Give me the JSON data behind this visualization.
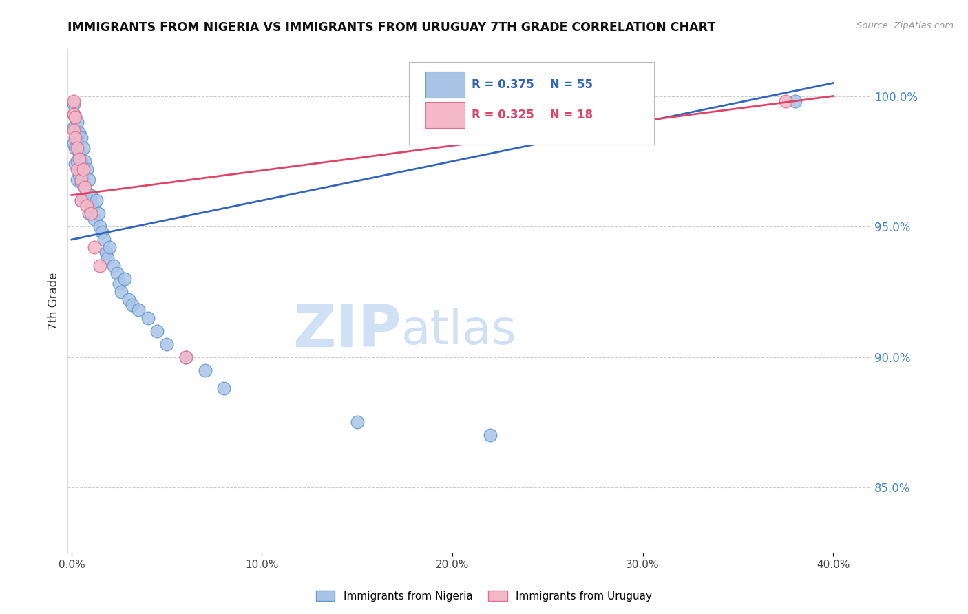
{
  "title": "IMMIGRANTS FROM NIGERIA VS IMMIGRANTS FROM URUGUAY 7TH GRADE CORRELATION CHART",
  "source": "Source: ZipAtlas.com",
  "ylabel": "7th Grade",
  "ylabel_right_ticks": [
    1.0,
    0.95,
    0.9,
    0.85
  ],
  "ymin": 0.825,
  "ymax": 1.018,
  "xmin": -0.002,
  "xmax": 0.42,
  "nigeria_color": "#aac4e8",
  "nigeria_edge": "#6699cc",
  "uruguay_color": "#f5b8c8",
  "uruguay_edge": "#e07090",
  "nigeria_R": 0.375,
  "nigeria_N": 55,
  "uruguay_R": 0.325,
  "uruguay_N": 18,
  "nigeria_line_color": "#3366bb",
  "uruguay_line_color": "#dd4466",
  "watermark_zip": "ZIP",
  "watermark_atlas": "atlas",
  "watermark_color": "#d0e0f5",
  "nigeria_points_x": [
    0.001,
    0.001,
    0.001,
    0.001,
    0.002,
    0.002,
    0.002,
    0.002,
    0.003,
    0.003,
    0.003,
    0.003,
    0.004,
    0.004,
    0.004,
    0.005,
    0.005,
    0.005,
    0.005,
    0.006,
    0.006,
    0.007,
    0.007,
    0.008,
    0.008,
    0.009,
    0.009,
    0.01,
    0.011,
    0.012,
    0.013,
    0.014,
    0.015,
    0.016,
    0.017,
    0.018,
    0.019,
    0.02,
    0.022,
    0.024,
    0.025,
    0.026,
    0.028,
    0.03,
    0.032,
    0.035,
    0.04,
    0.045,
    0.05,
    0.06,
    0.07,
    0.08,
    0.15,
    0.22,
    0.38
  ],
  "nigeria_points_y": [
    0.997,
    0.993,
    0.988,
    0.982,
    0.992,
    0.987,
    0.98,
    0.974,
    0.99,
    0.983,
    0.975,
    0.968,
    0.986,
    0.978,
    0.97,
    0.984,
    0.975,
    0.967,
    0.96,
    0.98,
    0.97,
    0.975,
    0.965,
    0.972,
    0.96,
    0.968,
    0.955,
    0.962,
    0.958,
    0.953,
    0.96,
    0.955,
    0.95,
    0.948,
    0.945,
    0.94,
    0.938,
    0.942,
    0.935,
    0.932,
    0.928,
    0.925,
    0.93,
    0.922,
    0.92,
    0.918,
    0.915,
    0.91,
    0.905,
    0.9,
    0.895,
    0.888,
    0.875,
    0.87,
    0.998
  ],
  "uruguay_points_x": [
    0.001,
    0.001,
    0.001,
    0.002,
    0.002,
    0.003,
    0.003,
    0.004,
    0.005,
    0.005,
    0.006,
    0.007,
    0.008,
    0.01,
    0.012,
    0.015,
    0.06,
    0.375
  ],
  "uruguay_points_y": [
    0.998,
    0.993,
    0.987,
    0.992,
    0.984,
    0.98,
    0.972,
    0.976,
    0.968,
    0.96,
    0.972,
    0.965,
    0.958,
    0.955,
    0.942,
    0.935,
    0.9,
    0.998
  ],
  "nigeria_line_x": [
    0.0,
    0.4
  ],
  "nigeria_line_y": [
    0.945,
    1.005
  ],
  "uruguay_line_x": [
    0.0,
    0.4
  ],
  "uruguay_line_y": [
    0.962,
    1.0
  ]
}
